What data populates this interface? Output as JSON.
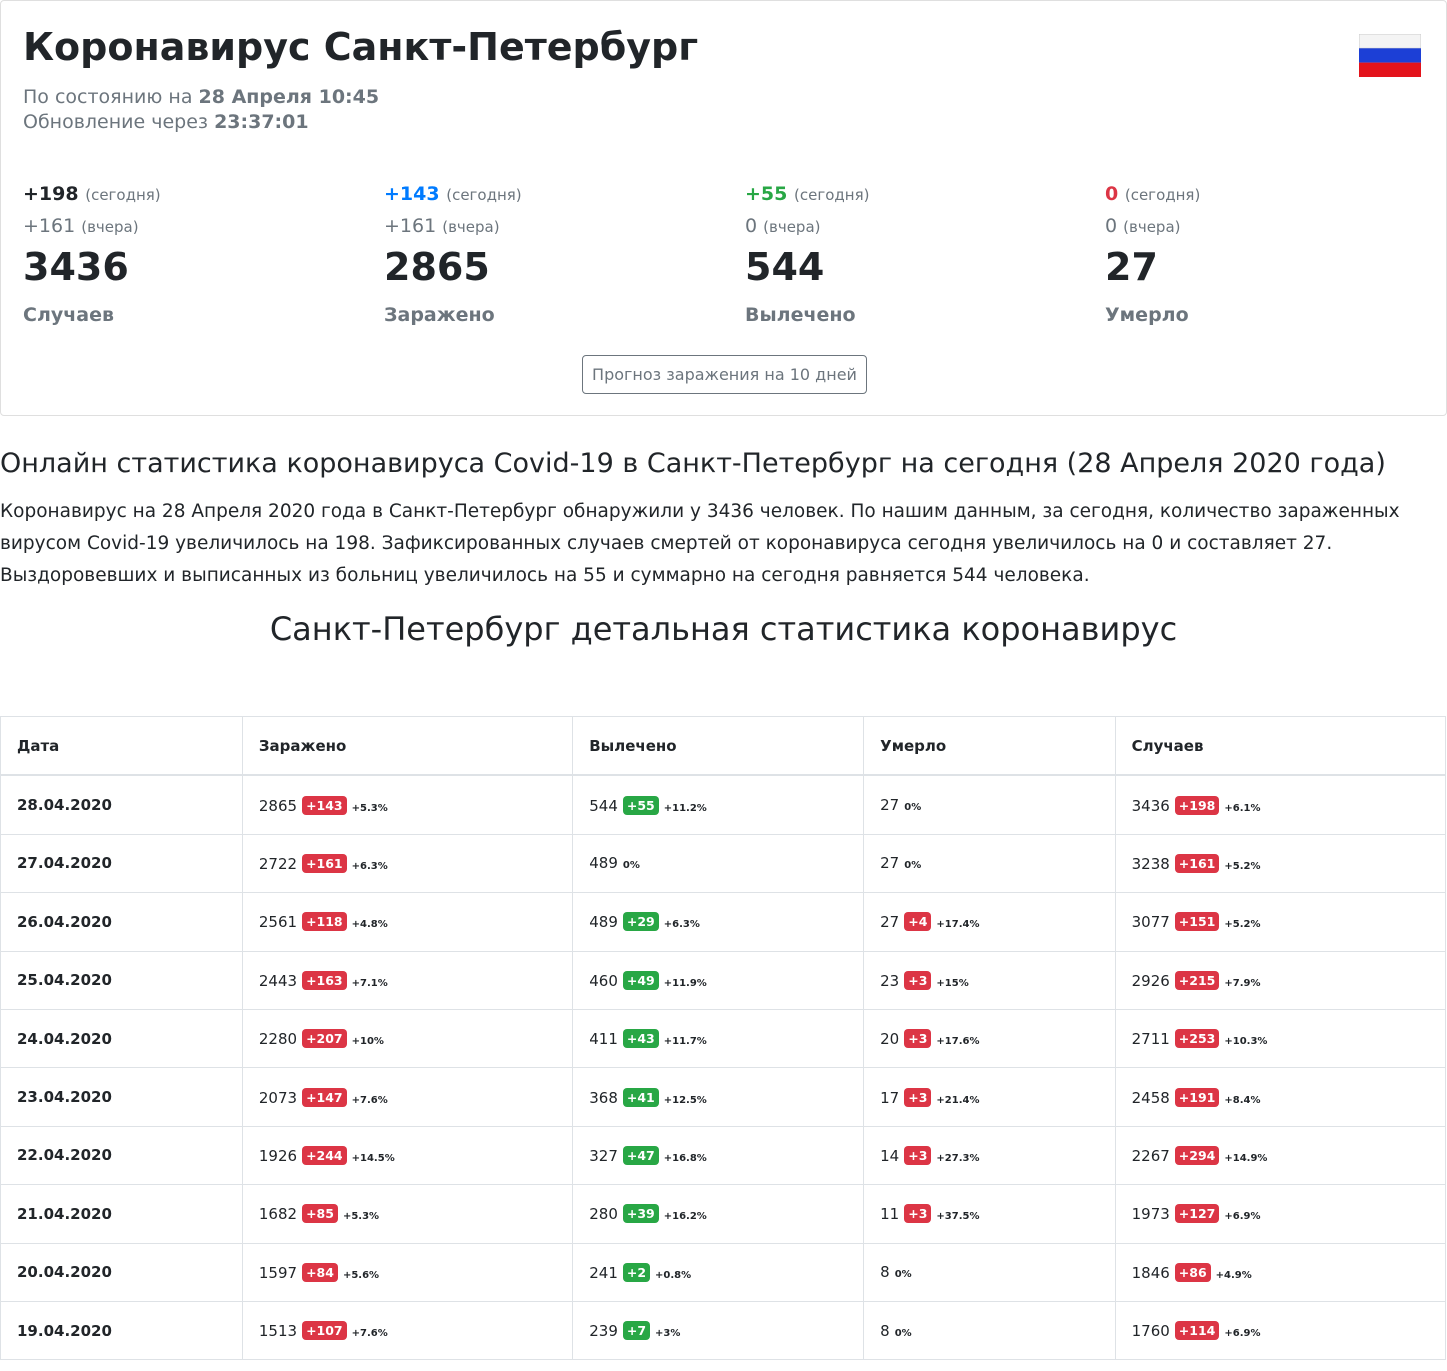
{
  "header": {
    "title": "Коронавирус Санкт-Петербург",
    "status_label": "По состоянию на",
    "status_date": "28 Апреля 10:45",
    "update_label": "Обновление через",
    "update_time": "23:37:01"
  },
  "stats": [
    {
      "today": "+198",
      "today_label": "(сегодня)",
      "yesterday": "+161",
      "yesterday_label": "(вчера)",
      "total": "3436",
      "label": "Случаев"
    },
    {
      "today": "+143",
      "today_label": "(сегодня)",
      "yesterday": "+161",
      "yesterday_label": "(вчера)",
      "total": "2865",
      "label": "Заражено"
    },
    {
      "today": "+55",
      "today_label": "(сегодня)",
      "yesterday": "0",
      "yesterday_label": "(вчера)",
      "total": "544",
      "label": "Вылечено"
    },
    {
      "today": "0",
      "today_label": "(сегодня)",
      "yesterday": "0",
      "yesterday_label": "(вчера)",
      "total": "27",
      "label": "Умерло"
    }
  ],
  "forecast_button": "Прогноз заражения на 10 дней",
  "article": {
    "heading": "Онлайн статистика коронавируса Covid-19 в Санкт-Петербург на сегодня (28 Апреля 2020 года)",
    "paragraph": "Коронавирус на 28 Апреля 2020 года в Санкт-Петербург обнаружили у 3436 человек. По нашим данным, за сегодня, количество зараженных вирусом Covid-19 увеличилось на 198. Зафиксированных случаев смертей от коронавируса сегодня увеличилось на 0 и составляет 27. Выздоровевших и выписанных из больниц увеличилось на 55 и суммарно на сегодня равняется 544 человека."
  },
  "section_title": "Санкт-Петербург детальная статистика коронавирус",
  "table": {
    "headers": [
      "Дата",
      "Заражено",
      "Вылечено",
      "Умерло",
      "Случаев"
    ],
    "rows": [
      [
        "28.04.2020",
        {
          "value": "2865",
          "delta": "+143",
          "pct": "+5.3%"
        },
        {
          "value": "544",
          "delta": "+55",
          "pct": "+11.2%"
        },
        {
          "value": "27",
          "pct": "0%"
        },
        {
          "value": "3436",
          "delta": "+198",
          "pct": "+6.1%"
        }
      ],
      [
        "27.04.2020",
        {
          "value": "2722",
          "delta": "+161",
          "pct": "+6.3%"
        },
        {
          "value": "489",
          "pct": "0%"
        },
        {
          "value": "27",
          "pct": "0%"
        },
        {
          "value": "3238",
          "delta": "+161",
          "pct": "+5.2%"
        }
      ],
      [
        "26.04.2020",
        {
          "value": "2561",
          "delta": "+118",
          "pct": "+4.8%"
        },
        {
          "value": "489",
          "delta": "+29",
          "pct": "+6.3%"
        },
        {
          "value": "27",
          "delta": "+4",
          "pct": "+17.4%"
        },
        {
          "value": "3077",
          "delta": "+151",
          "pct": "+5.2%"
        }
      ],
      [
        "25.04.2020",
        {
          "value": "2443",
          "delta": "+163",
          "pct": "+7.1%"
        },
        {
          "value": "460",
          "delta": "+49",
          "pct": "+11.9%"
        },
        {
          "value": "23",
          "delta": "+3",
          "pct": "+15%"
        },
        {
          "value": "2926",
          "delta": "+215",
          "pct": "+7.9%"
        }
      ],
      [
        "24.04.2020",
        {
          "value": "2280",
          "delta": "+207",
          "pct": "+10%"
        },
        {
          "value": "411",
          "delta": "+43",
          "pct": "+11.7%"
        },
        {
          "value": "20",
          "delta": "+3",
          "pct": "+17.6%"
        },
        {
          "value": "2711",
          "delta": "+253",
          "pct": "+10.3%"
        }
      ],
      [
        "23.04.2020",
        {
          "value": "2073",
          "delta": "+147",
          "pct": "+7.6%"
        },
        {
          "value": "368",
          "delta": "+41",
          "pct": "+12.5%"
        },
        {
          "value": "17",
          "delta": "+3",
          "pct": "+21.4%"
        },
        {
          "value": "2458",
          "delta": "+191",
          "pct": "+8.4%"
        }
      ],
      [
        "22.04.2020",
        {
          "value": "1926",
          "delta": "+244",
          "pct": "+14.5%"
        },
        {
          "value": "327",
          "delta": "+47",
          "pct": "+16.8%"
        },
        {
          "value": "14",
          "delta": "+3",
          "pct": "+27.3%"
        },
        {
          "value": "2267",
          "delta": "+294",
          "pct": "+14.9%"
        }
      ],
      [
        "21.04.2020",
        {
          "value": "1682",
          "delta": "+85",
          "pct": "+5.3%"
        },
        {
          "value": "280",
          "delta": "+39",
          "pct": "+16.2%"
        },
        {
          "value": "11",
          "delta": "+3",
          "pct": "+37.5%"
        },
        {
          "value": "1973",
          "delta": "+127",
          "pct": "+6.9%"
        }
      ],
      [
        "20.04.2020",
        {
          "value": "1597",
          "delta": "+84",
          "pct": "+5.6%"
        },
        {
          "value": "241",
          "delta": "+2",
          "pct": "+0.8%"
        },
        {
          "value": "8",
          "pct": "0%"
        },
        {
          "value": "1846",
          "delta": "+86",
          "pct": "+4.9%"
        }
      ],
      [
        "19.04.2020",
        {
          "value": "1513",
          "delta": "+107",
          "pct": "+7.6%"
        },
        {
          "value": "239",
          "delta": "+7",
          "pct": "+3%"
        },
        {
          "value": "8",
          "pct": "0%"
        },
        {
          "value": "1760",
          "delta": "+114",
          "pct": "+6.9%"
        }
      ]
    ]
  }
}
